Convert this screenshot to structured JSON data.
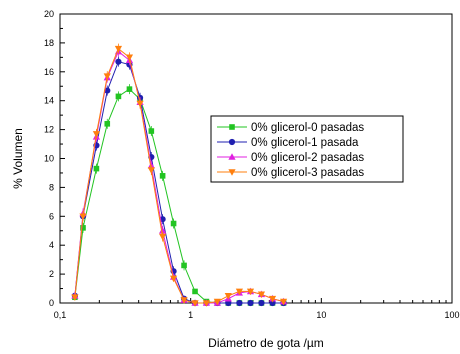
{
  "chart_data": {
    "type": "line",
    "xlabel": "Diámetro de gota /µm",
    "ylabel": "% Volumen",
    "xscale": "log",
    "xlim": [
      0.1,
      100
    ],
    "ylim": [
      0,
      20
    ],
    "x_ticks": [
      0.1,
      1,
      10,
      100
    ],
    "x_tick_labels": [
      "0,1",
      "1",
      "10",
      "100"
    ],
    "y_ticks": [
      0,
      2,
      4,
      6,
      8,
      10,
      12,
      14,
      16,
      18,
      20
    ],
    "y_tick_labels": [
      "0",
      "2",
      "4",
      "6",
      "8",
      "10",
      "12",
      "14",
      "16",
      "18",
      "20"
    ],
    "grid": false,
    "legend_position": "center-right",
    "x": [
      0.13,
      0.15,
      0.19,
      0.23,
      0.28,
      0.34,
      0.41,
      0.5,
      0.61,
      0.74,
      0.89,
      1.08,
      1.32,
      1.6,
      1.94,
      2.36,
      2.87,
      3.48,
      4.23,
      5.14
    ],
    "series": [
      {
        "name": "0% glicerol-0 pasadas",
        "color": "#22c422",
        "marker": "square",
        "values": [
          0.4,
          5.2,
          9.3,
          12.4,
          14.3,
          14.8,
          14.1,
          11.9,
          8.8,
          5.5,
          2.6,
          0.8,
          0.1,
          0,
          0,
          0,
          0,
          0,
          0,
          0
        ]
      },
      {
        "name": "0% glicerol-1 pasada",
        "color": "#1f1fb0",
        "marker": "circle",
        "values": [
          0.5,
          6.0,
          10.9,
          14.7,
          16.7,
          16.5,
          14.2,
          10.1,
          5.8,
          2.2,
          0.3,
          0,
          0,
          0,
          0,
          0,
          0,
          0,
          0,
          0
        ]
      },
      {
        "name": "0% glicerol-2 pasadas",
        "color": "#e020e0",
        "marker": "triangle-up",
        "values": [
          0.5,
          6.2,
          11.5,
          15.6,
          17.4,
          16.8,
          13.9,
          9.5,
          5.0,
          1.8,
          0.2,
          0,
          0,
          0,
          0.3,
          0.7,
          0.8,
          0.6,
          0.3,
          0.1
        ]
      },
      {
        "name": "0% glicerol-3 pasadas",
        "color": "#ff7f0e",
        "marker": "triangle-down",
        "values": [
          0.4,
          6.0,
          11.7,
          15.7,
          17.6,
          17.0,
          13.8,
          9.2,
          4.6,
          1.7,
          0.2,
          0,
          0,
          0.1,
          0.5,
          0.8,
          0.8,
          0.6,
          0.3,
          0.1
        ]
      }
    ]
  }
}
